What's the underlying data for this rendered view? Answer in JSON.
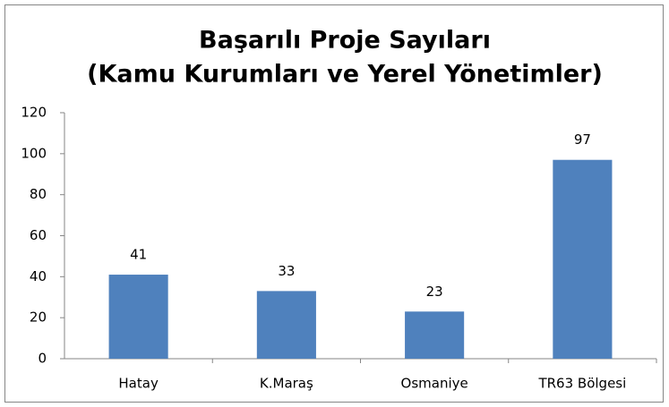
{
  "chart_data": {
    "type": "bar",
    "title": [
      "Başarılı Proje Sayıları",
      "(Kamu Kurumları ve Yerel Yönetimler)"
    ],
    "categories": [
      "Hatay",
      "K.Maraş",
      "Osmaniye",
      "TR63 Bölgesi"
    ],
    "values": [
      41,
      33,
      23,
      97
    ],
    "color": "#4f81bd",
    "ylim": [
      0,
      120
    ],
    "yticks": [
      0,
      20,
      40,
      60,
      80,
      100,
      120
    ],
    "grid": false,
    "data_labels": true
  }
}
